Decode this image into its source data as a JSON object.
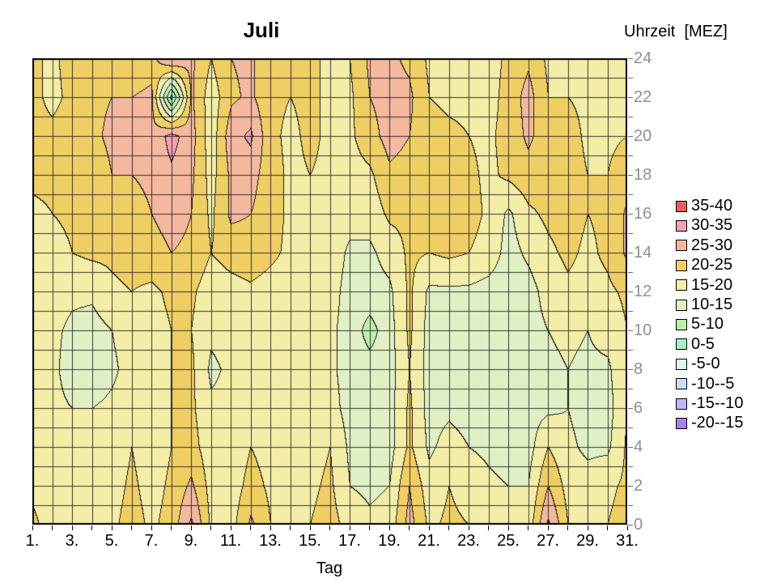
{
  "title": "Juli",
  "y_axis_title": "Uhrzeit  [MEZ]",
  "x_axis_title": "Tag",
  "colors": {
    "frame": "#000000",
    "grid_line": "#1e1e1e",
    "contour_line": "#1e1e1e",
    "x_tick_label": "#000000",
    "y_tick_label": "#8f8f8f"
  },
  "legend": [
    {
      "label": "35-40",
      "min": 35,
      "color": "#F15A60"
    },
    {
      "label": "30-35",
      "min": 30,
      "color": "#F2A2B4"
    },
    {
      "label": "25-30",
      "min": 25,
      "color": "#F3B89E"
    },
    {
      "label": "20-25",
      "min": 20,
      "color": "#EFCE64"
    },
    {
      "label": "15-20",
      "min": 15,
      "color": "#F3EDA7"
    },
    {
      "label": "10-15",
      "min": 10,
      "color": "#E0F0C4"
    },
    {
      "label": "5-10",
      "min": 5,
      "color": "#BCEFAD"
    },
    {
      "label": "0-5",
      "min": 0,
      "color": "#A9EFC1"
    },
    {
      "label": "-5-0",
      "min": -5,
      "color": "#DCF5F2"
    },
    {
      "label": "-10--5",
      "min": -10,
      "color": "#C8E0F5"
    },
    {
      "label": "-15--10",
      "min": -15,
      "color": "#BEB9F2"
    },
    {
      "label": "-20--15",
      "min": -20,
      "color": "#A982E8"
    }
  ],
  "chart_data": {
    "type": "heatmap",
    "title": "Juli",
    "xlabel": "Tag",
    "ylabel": "Uhrzeit [MEZ]",
    "grid": true,
    "legend_position": "right",
    "x_days": [
      1,
      2,
      3,
      4,
      5,
      6,
      7,
      8,
      9,
      10,
      11,
      12,
      13,
      14,
      15,
      16,
      17,
      18,
      19,
      20,
      21,
      22,
      23,
      24,
      25,
      26,
      27,
      28,
      29,
      30,
      31
    ],
    "y_hours": [
      0,
      2,
      4,
      6,
      8,
      10,
      12,
      14,
      16,
      18,
      20,
      22,
      24
    ],
    "x_range": [
      1,
      31
    ],
    "y_range": [
      0,
      24
    ],
    "x_tick_labels": [
      {
        "day": 1,
        "label": "1."
      },
      {
        "day": 3,
        "label": "3."
      },
      {
        "day": 5,
        "label": "5."
      },
      {
        "day": 7,
        "label": "7."
      },
      {
        "day": 9,
        "label": "9."
      },
      {
        "day": 11,
        "label": "11."
      },
      {
        "day": 13,
        "label": "13."
      },
      {
        "day": 15,
        "label": "15."
      },
      {
        "day": 17,
        "label": "17."
      },
      {
        "day": 19,
        "label": "19."
      },
      {
        "day": 21,
        "label": "21."
      },
      {
        "day": 23,
        "label": "23."
      },
      {
        "day": 25,
        "label": "25."
      },
      {
        "day": 27,
        "label": "27."
      },
      {
        "day": 29,
        "label": "29."
      },
      {
        "day": 31,
        "label": "31."
      }
    ],
    "y_tick_labels": [
      {
        "hour": 0,
        "label": "0"
      },
      {
        "hour": 2,
        "label": "2"
      },
      {
        "hour": 4,
        "label": "4"
      },
      {
        "hour": 6,
        "label": "6"
      },
      {
        "hour": 8,
        "label": "8"
      },
      {
        "hour": 10,
        "label": "10"
      },
      {
        "hour": 12,
        "label": "12"
      },
      {
        "hour": 14,
        "label": "14"
      },
      {
        "hour": 16,
        "label": "16"
      },
      {
        "hour": 18,
        "label": "18"
      },
      {
        "hour": 20,
        "label": "20"
      },
      {
        "hour": 22,
        "label": "22"
      },
      {
        "hour": 24,
        "label": "24"
      }
    ],
    "values": [
      [
        21,
        18,
        18,
        18,
        19,
        22,
        19,
        22,
        31,
        19,
        18,
        26,
        20,
        19,
        20,
        22,
        18,
        16,
        17,
        27,
        19,
        21,
        20,
        18,
        17,
        17,
        31,
        20,
        19,
        20,
        22
      ],
      [
        19,
        17,
        17,
        17,
        18,
        21,
        18,
        21,
        26,
        18,
        17,
        22,
        19,
        18,
        19,
        21,
        15,
        14,
        15,
        25,
        17,
        20,
        18,
        16,
        15,
        15,
        25,
        18,
        17,
        19,
        21
      ],
      [
        17,
        16,
        16,
        16,
        17,
        20,
        17,
        20,
        22,
        17,
        16,
        20,
        18,
        17,
        18,
        20,
        14,
        13,
        13,
        21,
        14,
        17,
        15,
        14,
        13,
        13,
        20,
        16,
        14,
        14,
        21
      ],
      [
        16,
        16,
        15,
        15,
        16,
        18,
        17,
        20,
        21,
        16,
        16,
        19,
        17,
        16,
        17,
        17,
        13,
        13,
        13,
        21,
        13,
        14,
        13,
        13,
        12,
        13,
        14,
        15,
        13,
        13,
        20
      ],
      [
        16,
        16,
        13,
        12,
        14,
        17,
        17,
        20,
        21,
        14,
        16,
        18,
        17,
        16,
        17,
        16,
        13,
        12,
        13,
        20,
        13,
        13,
        13,
        13,
        12,
        13,
        14,
        15,
        14,
        14,
        20
      ],
      [
        16,
        16,
        14,
        13,
        15,
        18,
        18,
        20,
        20,
        16,
        17,
        18,
        17,
        17,
        17,
        16,
        13,
        8,
        13,
        21,
        13,
        13,
        13,
        13,
        12,
        13,
        15,
        16,
        15,
        17,
        20
      ],
      [
        17,
        17,
        16,
        16,
        19,
        20,
        19,
        21,
        21,
        17,
        18,
        19,
        18,
        18,
        18,
        17,
        13,
        13,
        14,
        21,
        14,
        14,
        14,
        13,
        12,
        13,
        17,
        19,
        18,
        19,
        21
      ],
      [
        18,
        18,
        20,
        21,
        21,
        22,
        23,
        25,
        24,
        20,
        22,
        23,
        21,
        19,
        19,
        18,
        14,
        14,
        17,
        21,
        20,
        21,
        20,
        18,
        13,
        16,
        19,
        21,
        19,
        21,
        26
      ],
      [
        19,
        20,
        21,
        22,
        22,
        23,
        25,
        27,
        25,
        19,
        26,
        25,
        22,
        19,
        19,
        18,
        17,
        17,
        21,
        21,
        22,
        22,
        22,
        19,
        14,
        19,
        21,
        22,
        20,
        21,
        26
      ],
      [
        21,
        21,
        22,
        22,
        25,
        25,
        26,
        29,
        26,
        18,
        26,
        27,
        22,
        19,
        20,
        19,
        18,
        19,
        24,
        23,
        22,
        22,
        21,
        19,
        21,
        23,
        22,
        22,
        20,
        20,
        23
      ],
      [
        21,
        21,
        22,
        24,
        26,
        26,
        26,
        32,
        27,
        17,
        28,
        31,
        21,
        19,
        21,
        19,
        19,
        23,
        27,
        25,
        22,
        21,
        20,
        19,
        22,
        26,
        22,
        22,
        19,
        19,
        20
      ],
      [
        21,
        19,
        21,
        24,
        25,
        25,
        26,
        -2,
        26,
        17,
        24,
        26,
        21,
        20,
        21,
        19,
        19,
        25,
        27,
        26,
        20,
        19,
        19,
        18,
        22,
        27,
        20,
        20,
        19,
        18,
        19
      ],
      [
        21,
        19,
        22,
        22,
        21,
        22,
        23,
        31,
        26,
        20,
        25,
        26,
        21,
        20,
        21,
        19,
        20,
        26,
        26,
        24,
        19,
        18,
        18,
        18,
        21,
        24,
        19,
        19,
        19,
        18,
        19
      ]
    ]
  }
}
